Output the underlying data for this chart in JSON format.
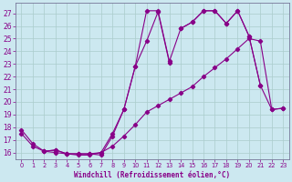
{
  "xlabel": "Windchill (Refroidissement éolien,°C)",
  "bg_color": "#cce8f0",
  "line_color": "#880088",
  "grid_color": "#aacccc",
  "xlim": [
    -0.5,
    23.5
  ],
  "ylim": [
    15.5,
    27.8
  ],
  "yticks": [
    16,
    17,
    18,
    19,
    20,
    21,
    22,
    23,
    24,
    25,
    26,
    27
  ],
  "xticks": [
    0,
    1,
    2,
    3,
    4,
    5,
    6,
    7,
    8,
    9,
    10,
    11,
    12,
    13,
    14,
    15,
    16,
    17,
    18,
    19,
    20,
    21,
    22,
    23
  ],
  "line1_x": [
    0,
    1,
    2,
    3,
    4,
    5,
    6,
    7,
    8,
    9,
    10,
    11,
    12,
    13,
    14,
    15,
    16,
    17,
    18,
    19,
    20,
    21
  ],
  "line1_y": [
    17.8,
    16.7,
    16.1,
    16.2,
    15.9,
    15.9,
    15.9,
    15.8,
    17.3,
    19.4,
    22.8,
    27.2,
    27.2,
    23.2,
    25.8,
    26.3,
    27.2,
    27.2,
    26.2,
    27.2,
    25.2,
    21.3
  ],
  "line2_x": [
    2,
    3,
    4,
    5,
    6,
    7,
    8,
    9,
    10,
    11,
    12,
    13
  ],
  "line2_y": [
    16.1,
    16.2,
    15.9,
    15.9,
    15.9,
    16.0,
    17.5,
    19.4,
    22.8,
    24.8,
    27.1,
    23.1
  ],
  "line3_x": [
    0,
    1,
    2,
    3,
    4,
    5,
    6,
    7,
    8,
    9,
    10,
    11,
    12,
    13,
    14,
    15,
    16,
    17,
    18,
    19,
    20,
    21,
    22,
    23
  ],
  "line3_y": [
    17.5,
    16.5,
    16.1,
    16.0,
    15.9,
    15.8,
    15.8,
    16.0,
    16.5,
    17.3,
    18.2,
    19.2,
    19.7,
    20.2,
    20.7,
    21.2,
    22.0,
    22.7,
    23.4,
    24.2,
    25.0,
    24.8,
    19.4,
    19.5
  ],
  "line4_x": [
    14,
    15,
    16,
    17,
    18,
    19,
    20,
    21,
    22,
    23
  ],
  "line4_y": [
    25.8,
    26.3,
    27.2,
    27.2,
    26.2,
    27.2,
    25.2,
    21.3,
    19.4,
    19.5
  ]
}
